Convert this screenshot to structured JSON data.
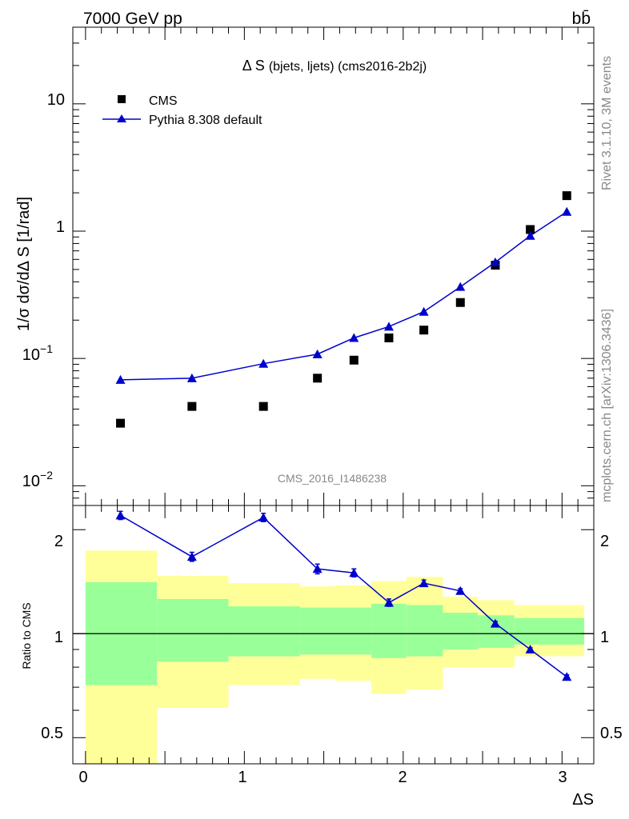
{
  "header": {
    "energy_label": "7000 GeV pp",
    "process_label": "bb̄",
    "side_label_top": "Rivet 3.1.10,  3M events",
    "side_label_bottom": "mcplots.cern.ch [arXiv:1306.3436]",
    "watermark": "CMS_2016_I1486238"
  },
  "chart_data": [
    {
      "type": "scatter",
      "panel": "main",
      "title_main": "Δ S",
      "title_sub": "(bjets, ljets) (cms2016-2b2j)",
      "ylabel": "1/σ dσ/dΔ S [1/rad]",
      "yscale": "log",
      "ylim": [
        0.007,
        40
      ],
      "xlim": [
        -0.08,
        3.2
      ],
      "yticks": [
        0.01,
        0.1,
        1,
        10
      ],
      "ytick_labels": {
        "base": "10",
        "exp_minus2": "−2",
        "exp_minus1": "−1",
        "one": "1",
        "ten": "10"
      },
      "legend": {
        "placement": "top-left",
        "entries": [
          "CMS",
          "Pythia 8.308 default"
        ]
      },
      "series": [
        {
          "name": "CMS",
          "color": "#000000",
          "marker": "square",
          "x": [
            0.22,
            0.67,
            1.12,
            1.46,
            1.69,
            1.91,
            2.13,
            2.36,
            2.58,
            2.8,
            3.03
          ],
          "y": [
            0.031,
            0.042,
            0.042,
            0.07,
            0.097,
            0.145,
            0.167,
            0.275,
            0.54,
            1.03,
            1.9
          ]
        },
        {
          "name": "Pythia 8.308 default",
          "color": "#0000cc",
          "marker": "triangle",
          "x": [
            0.22,
            0.67,
            1.12,
            1.46,
            1.69,
            1.91,
            2.13,
            2.36,
            2.58,
            2.8,
            3.03
          ],
          "y": [
            0.068,
            0.07,
            0.091,
            0.108,
            0.145,
            0.178,
            0.233,
            0.365,
            0.57,
            0.92,
            1.42
          ]
        }
      ]
    },
    {
      "type": "line",
      "panel": "ratio",
      "ylabel": "Ratio to CMS",
      "xlabel": "ΔS",
      "yscale": "log",
      "ylim": [
        0.42,
        2.35
      ],
      "xlim": [
        -0.08,
        3.2
      ],
      "xticks": [
        0,
        1,
        2,
        3
      ],
      "xtick_labels": [
        "0",
        "1",
        "2",
        "3"
      ],
      "yticks": [
        0.5,
        1,
        2
      ],
      "ytick_labels": [
        "0.5",
        "1",
        "2"
      ],
      "reference_line": 1,
      "bands": {
        "edges": [
          0,
          0.45,
          0.9,
          1.35,
          1.57,
          1.8,
          2.02,
          2.25,
          2.47,
          2.7,
          3.14
        ],
        "green_lo": [
          0.71,
          0.83,
          0.86,
          0.87,
          0.87,
          0.85,
          0.86,
          0.9,
          0.91,
          0.93
        ],
        "green_hi": [
          1.41,
          1.26,
          1.2,
          1.19,
          1.19,
          1.22,
          1.21,
          1.15,
          1.13,
          1.11
        ],
        "yellow_lo": [
          0.3,
          0.61,
          0.71,
          0.74,
          0.73,
          0.67,
          0.69,
          0.8,
          0.8,
          0.86
        ],
        "yellow_hi": [
          1.74,
          1.47,
          1.4,
          1.37,
          1.38,
          1.42,
          1.46,
          1.28,
          1.25,
          1.21
        ],
        "green_color": "#99ff99",
        "yellow_color": "#ffff99"
      },
      "series": [
        {
          "name": "Pythia 8.308 default",
          "color": "#0000cc",
          "x": [
            0.22,
            0.67,
            1.12,
            1.46,
            1.69,
            1.91,
            2.13,
            2.36,
            2.58,
            2.8,
            3.03
          ],
          "y": [
            2.2,
            1.67,
            2.17,
            1.54,
            1.5,
            1.23,
            1.4,
            1.33,
            1.07,
            0.9,
            0.75
          ],
          "err": [
            0.06,
            0.05,
            0.06,
            0.05,
            0.04,
            0.03,
            0.03,
            0.02,
            0.015,
            0.01,
            0.01
          ]
        }
      ]
    }
  ]
}
